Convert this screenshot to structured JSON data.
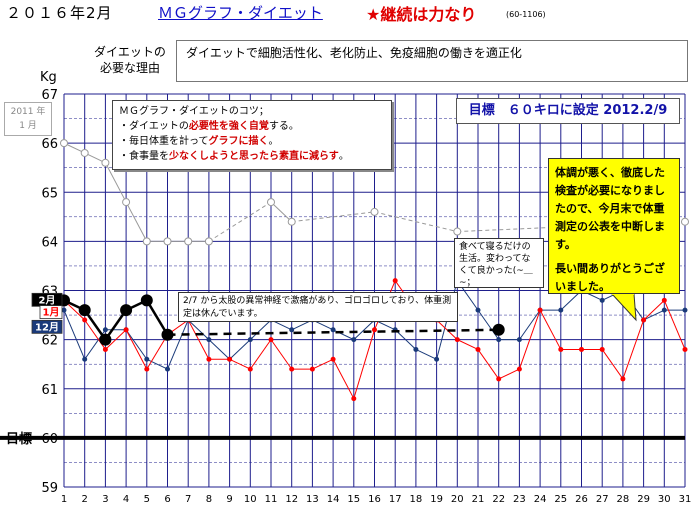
{
  "header": {
    "date": "２０１６年2月",
    "title": "ＭＧグラフ・ダイエット",
    "motto": "★継続は力なり",
    "code": "(60-1106)"
  },
  "reason": {
    "label_line1": "ダイエットの",
    "label_line2": "必要な理由",
    "text": "ダイエットで細胞活性化、老化防止、免疫細胞の働きを適正化"
  },
  "tips": {
    "title": "ＭＧグラフ・ダイエットのコツ；",
    "line1_pre": "・ダイエットの",
    "line1_hl": "必要性を強く自覚",
    "line1_post": "する。",
    "line2_pre": "・毎日体重を計って",
    "line2_hl": "グラフに描く",
    "line2_post": "。",
    "line3_pre": "・食事量を",
    "line3_hl": "少なくしようと思ったら素直に減らす",
    "line3_post": "。"
  },
  "goal_note": "目標　６０キロに設定 2012.2/9",
  "notice": {
    "para1": "体調が悪く、徹底した検査が必要になりましたので、今月末で体重測定の公表を中断します。",
    "para2": "長い間ありがとうございました。"
  },
  "comment": "食べて寝るだけの生活。変わってなくて良かった(~＿~；",
  "event_note": "2/7 から太股の異常神経で激痛があり、ゴロゴロしており、体重測定は休んでいます。",
  "start_label": {
    "line1": "2011 年",
    "line2": "1 月"
  },
  "colors": {
    "feb": "#000000",
    "jan": "#ff0000",
    "dec": "#1a3a7a",
    "start_2011": "#999999",
    "grid": "#1e1e8c",
    "target": "#000000"
  },
  "chart_data": {
    "type": "line",
    "unit": "Kg",
    "x": [
      1,
      2,
      3,
      4,
      5,
      6,
      7,
      8,
      9,
      10,
      11,
      12,
      13,
      14,
      15,
      16,
      17,
      18,
      19,
      20,
      21,
      22,
      23,
      24,
      25,
      26,
      27,
      28,
      29,
      30,
      31
    ],
    "ylim": [
      59,
      67
    ],
    "y_ticks": [
      59,
      60,
      61,
      62,
      63,
      64,
      65,
      66,
      67
    ],
    "target": {
      "value": 60,
      "label": "目標"
    },
    "series": [
      {
        "name": "2月",
        "color": "#000000",
        "values": [
          62.8,
          62.6,
          62.0,
          62.6,
          62.8,
          62.1,
          null,
          null,
          null,
          null,
          null,
          null,
          null,
          null,
          null,
          null,
          null,
          null,
          null,
          null,
          null,
          62.2,
          null,
          null,
          null,
          null,
          null,
          null,
          null,
          null,
          null
        ],
        "dashed_gap": [
          6,
          22
        ]
      },
      {
        "name": "1月",
        "color": "#ff0000",
        "values": [
          62.8,
          62.4,
          61.8,
          62.2,
          61.4,
          62.1,
          62.4,
          61.6,
          61.6,
          61.4,
          62.0,
          61.4,
          61.4,
          61.6,
          60.8,
          62.2,
          63.2,
          62.6,
          62.4,
          62.0,
          61.8,
          61.2,
          61.4,
          62.6,
          61.8,
          61.8,
          61.8,
          61.2,
          62.4,
          62.8,
          61.8
        ]
      },
      {
        "name": "12月",
        "color": "#1a3a7a",
        "values": [
          62.6,
          61.6,
          62.2,
          62.2,
          61.6,
          61.4,
          62.4,
          62.0,
          61.6,
          62.0,
          62.4,
          62.2,
          62.4,
          62.2,
          62.0,
          62.4,
          62.2,
          61.8,
          61.6,
          63.2,
          62.6,
          62.0,
          62.0,
          62.6,
          62.6,
          63.0,
          62.8,
          63.0,
          62.4,
          62.6,
          62.6
        ]
      },
      {
        "name": "2011年1月",
        "color": "#999999",
        "values": [
          66.0,
          65.8,
          65.6,
          64.8,
          64.0,
          64.0,
          64.0,
          64.0,
          null,
          null,
          64.8,
          64.4,
          null,
          null,
          null,
          64.6,
          null,
          null,
          null,
          64.2,
          null,
          null,
          null,
          null,
          null,
          null,
          null,
          null,
          null,
          null,
          64.4
        ]
      }
    ]
  }
}
